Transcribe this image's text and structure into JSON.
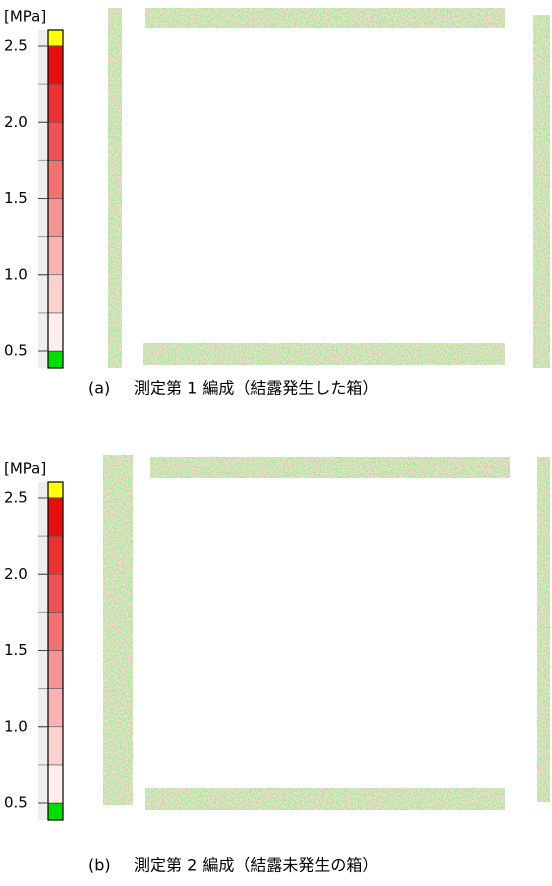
{
  "panels": [
    {
      "unit": "[MPa]",
      "ticks": [
        {
          "value": 2.5,
          "label": "2.5"
        },
        {
          "value": 2,
          "label": "2.0"
        },
        {
          "value": 1.5,
          "label": "1.5"
        },
        {
          "value": 1,
          "label": "1.0"
        },
        {
          "value": 0.5,
          "label": "0.5"
        }
      ],
      "caption_label": "(a)",
      "caption": "測定第 1 編成（結露発生した箱）"
    },
    {
      "unit": "[MPa]",
      "ticks": [
        {
          "value": 2.5,
          "label": "2.5"
        },
        {
          "value": 2,
          "label": "2.0"
        },
        {
          "value": 1.5,
          "label": "1.5"
        },
        {
          "value": 1,
          "label": "1.0"
        },
        {
          "value": 0.5,
          "label": "0.5"
        }
      ],
      "caption_label": "(b)",
      "caption": "測定第 2 編成（結露未発生の箱）"
    }
  ]
}
